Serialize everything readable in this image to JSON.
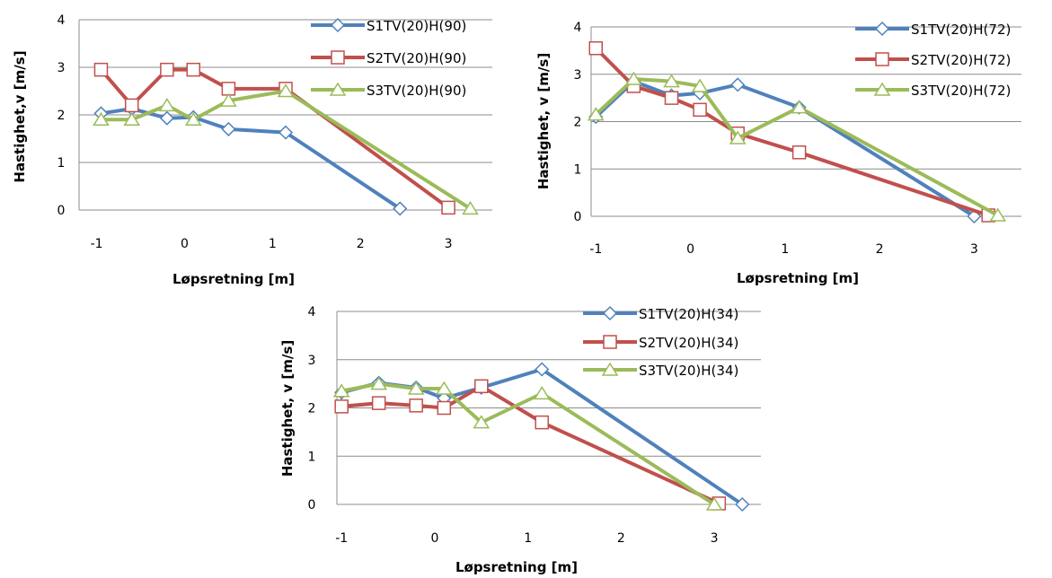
{
  "chart_data": [
    {
      "type": "line",
      "xlabel": "Løpsretning [m]",
      "ylabel": "Hastighet,v  [m/s]",
      "xlim": [
        -1.2,
        3.5
      ],
      "ylim": [
        0,
        4
      ],
      "xticks": [
        -1,
        0,
        1,
        2,
        3
      ],
      "yticks": [
        0,
        1,
        2,
        3,
        4
      ],
      "grid": "horizontal",
      "legend": "top-right",
      "series": [
        {
          "name": "S1TV(20)H(90)",
          "color": "#4f81bd",
          "marker": "diamond",
          "x": [
            -0.95,
            -0.6,
            -0.2,
            0.1,
            0.5,
            1.15,
            2.45
          ],
          "y": [
            2.03,
            2.13,
            1.93,
            1.95,
            1.7,
            1.63,
            0.03
          ]
        },
        {
          "name": "S2TV(20)H(90)",
          "color": "#c0504d",
          "marker": "square",
          "x": [
            -0.95,
            -0.6,
            -0.2,
            0.1,
            0.5,
            1.15,
            3.0
          ],
          "y": [
            2.95,
            2.2,
            2.95,
            2.95,
            2.55,
            2.55,
            0.05
          ]
        },
        {
          "name": "S3TV(20)H(90)",
          "color": "#9bbb59",
          "marker": "triangle",
          "x": [
            -0.95,
            -0.6,
            -0.2,
            0.1,
            0.5,
            1.15,
            3.25
          ],
          "y": [
            1.9,
            1.9,
            2.2,
            1.9,
            2.3,
            2.5,
            0.03
          ]
        }
      ]
    },
    {
      "type": "line",
      "xlabel": "Løpsretning [m]",
      "ylabel": "Hastighet,  v  [m/s]",
      "xlim": [
        -1.05,
        3.5
      ],
      "ylim": [
        0,
        4
      ],
      "xticks": [
        -1,
        0,
        1,
        2,
        3
      ],
      "yticks": [
        0,
        1,
        2,
        3,
        4
      ],
      "grid": "horizontal",
      "legend": "top-right",
      "series": [
        {
          "name": "S1TV(20)H(72)",
          "color": "#4f81bd",
          "marker": "diamond",
          "x": [
            -1.0,
            -0.6,
            -0.2,
            0.1,
            0.5,
            1.15,
            3.0
          ],
          "y": [
            2.1,
            2.85,
            2.55,
            2.6,
            2.78,
            2.3,
            0.0
          ]
        },
        {
          "name": "S2TV(20)H(72)",
          "color": "#c0504d",
          "marker": "square",
          "x": [
            -1.0,
            -0.6,
            -0.2,
            0.1,
            0.5,
            1.15,
            3.15
          ],
          "y": [
            3.55,
            2.75,
            2.5,
            2.25,
            1.75,
            1.35,
            0.02
          ]
        },
        {
          "name": "S3TV(20)H(72)",
          "color": "#9bbb59",
          "marker": "triangle",
          "x": [
            -1.0,
            -0.6,
            -0.2,
            0.1,
            0.5,
            1.15,
            3.25
          ],
          "y": [
            2.15,
            2.9,
            2.85,
            2.75,
            1.65,
            2.3,
            0.02
          ]
        }
      ]
    },
    {
      "type": "line",
      "xlabel": "Løpsretning [m]",
      "ylabel": "Hastighet,  v  [m/s]",
      "xlim": [
        -1.05,
        3.5
      ],
      "ylim": [
        0,
        4
      ],
      "xticks": [
        -1,
        0,
        1,
        2,
        3
      ],
      "yticks": [
        0,
        1,
        2,
        3,
        4
      ],
      "grid": "horizontal",
      "legend": "top-right",
      "series": [
        {
          "name": "S1TV(20)H(34)",
          "color": "#4f81bd",
          "marker": "diamond",
          "x": [
            -1.0,
            -0.6,
            -0.2,
            0.1,
            0.5,
            1.15,
            3.3
          ],
          "y": [
            2.32,
            2.52,
            2.42,
            2.2,
            2.42,
            2.8,
            0.0
          ]
        },
        {
          "name": "S2TV(20)H(34)",
          "color": "#c0504d",
          "marker": "square",
          "x": [
            -1.0,
            -0.6,
            -0.2,
            0.1,
            0.5,
            1.15,
            3.05
          ],
          "y": [
            2.03,
            2.1,
            2.05,
            2.0,
            2.45,
            1.7,
            0.02
          ]
        },
        {
          "name": "S3TV(20)H(34)",
          "color": "#9bbb59",
          "marker": "triangle",
          "x": [
            -1.0,
            -0.6,
            -0.2,
            0.1,
            0.5,
            1.15,
            3.0
          ],
          "y": [
            2.35,
            2.5,
            2.4,
            2.4,
            1.7,
            2.3,
            0.0
          ]
        }
      ]
    }
  ]
}
